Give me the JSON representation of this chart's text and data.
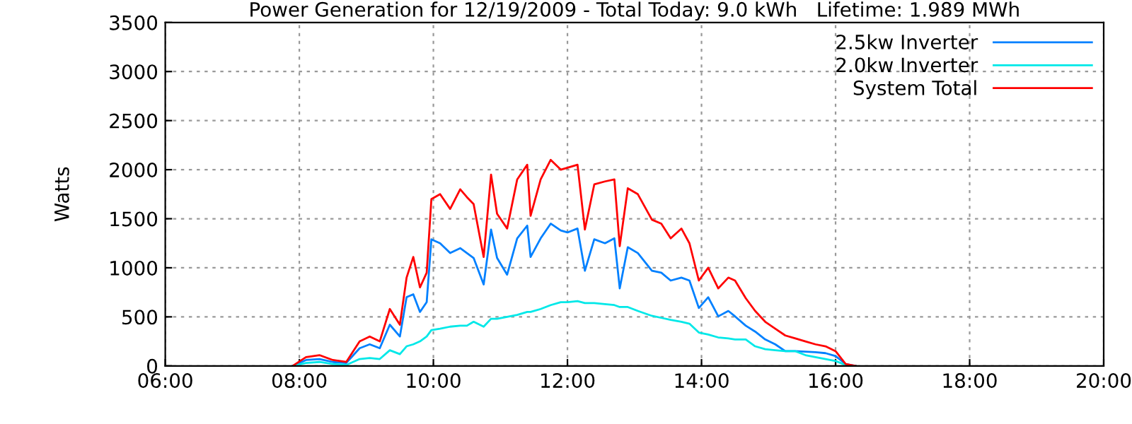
{
  "chart_data": {
    "type": "line",
    "title": "Power Generation for 12/19/2009 - Total Today: 9.0 kWh   Lifetime: 1.989 MWh",
    "ylabel": "Watts",
    "x": [
      7.9,
      8.1,
      8.3,
      8.5,
      8.7,
      8.9,
      9.05,
      9.2,
      9.35,
      9.5,
      9.6,
      9.7,
      9.8,
      9.9,
      9.97,
      10.1,
      10.25,
      10.4,
      10.5,
      10.6,
      10.75,
      10.86,
      10.95,
      11.1,
      11.25,
      11.4,
      11.45,
      11.6,
      11.75,
      11.9,
      12.0,
      12.15,
      12.26,
      12.4,
      12.56,
      12.7,
      12.78,
      12.9,
      13.05,
      13.26,
      13.4,
      13.54,
      13.7,
      13.82,
      13.96,
      14.1,
      14.25,
      14.4,
      14.5,
      14.66,
      14.8,
      14.95,
      15.1,
      15.25,
      15.4,
      15.55,
      15.7,
      15.85,
      16.0,
      16.15,
      16.3
    ],
    "series": [
      {
        "name": "2.5kw Inverter",
        "color": "#0080ff",
        "values": [
          0,
          60,
          70,
          40,
          30,
          180,
          220,
          180,
          420,
          300,
          700,
          730,
          550,
          650,
          1290,
          1250,
          1150,
          1200,
          1150,
          1100,
          830,
          1390,
          1100,
          930,
          1300,
          1430,
          1110,
          1300,
          1450,
          1380,
          1360,
          1400,
          970,
          1290,
          1250,
          1300,
          790,
          1210,
          1150,
          970,
          950,
          870,
          900,
          870,
          590,
          700,
          505,
          560,
          505,
          410,
          350,
          270,
          220,
          150,
          150,
          145,
          140,
          130,
          100,
          20,
          0
        ]
      },
      {
        "name": "2.0kw Inverter",
        "color": "#00e8e8",
        "values": [
          0,
          30,
          40,
          20,
          10,
          70,
          80,
          70,
          160,
          120,
          200,
          220,
          250,
          300,
          365,
          380,
          400,
          410,
          410,
          450,
          400,
          480,
          480,
          500,
          520,
          550,
          550,
          580,
          620,
          650,
          650,
          660,
          640,
          640,
          630,
          620,
          600,
          600,
          560,
          510,
          490,
          470,
          450,
          430,
          340,
          320,
          290,
          280,
          270,
          270,
          200,
          170,
          160,
          150,
          150,
          110,
          90,
          70,
          50,
          10,
          0
        ]
      },
      {
        "name": "System Total",
        "color": "#ff0000",
        "values": [
          0,
          90,
          110,
          60,
          40,
          250,
          300,
          250,
          580,
          420,
          900,
          1110,
          800,
          950,
          1700,
          1750,
          1600,
          1800,
          1720,
          1650,
          1110,
          1950,
          1550,
          1400,
          1900,
          2050,
          1530,
          1900,
          2100,
          2000,
          2020,
          2050,
          1390,
          1850,
          1880,
          1900,
          1220,
          1810,
          1750,
          1490,
          1450,
          1300,
          1400,
          1250,
          870,
          1000,
          790,
          900,
          870,
          690,
          560,
          450,
          380,
          310,
          280,
          250,
          220,
          200,
          150,
          20,
          0
        ]
      }
    ],
    "xlim": [
      6,
      20
    ],
    "xticks": [
      {
        "value": 6,
        "label": "06:00"
      },
      {
        "value": 8,
        "label": "08:00"
      },
      {
        "value": 10,
        "label": "10:00"
      },
      {
        "value": 12,
        "label": "12:00"
      },
      {
        "value": 14,
        "label": "14:00"
      },
      {
        "value": 16,
        "label": "16:00"
      },
      {
        "value": 18,
        "label": "18:00"
      },
      {
        "value": 20,
        "label": "20:00"
      }
    ],
    "ylim": [
      0,
      3500
    ],
    "yticks": [
      0,
      500,
      1000,
      1500,
      2000,
      2500,
      3000,
      3500
    ],
    "grid": true,
    "legend": "top right",
    "marker": "none",
    "line_style": "solid"
  }
}
